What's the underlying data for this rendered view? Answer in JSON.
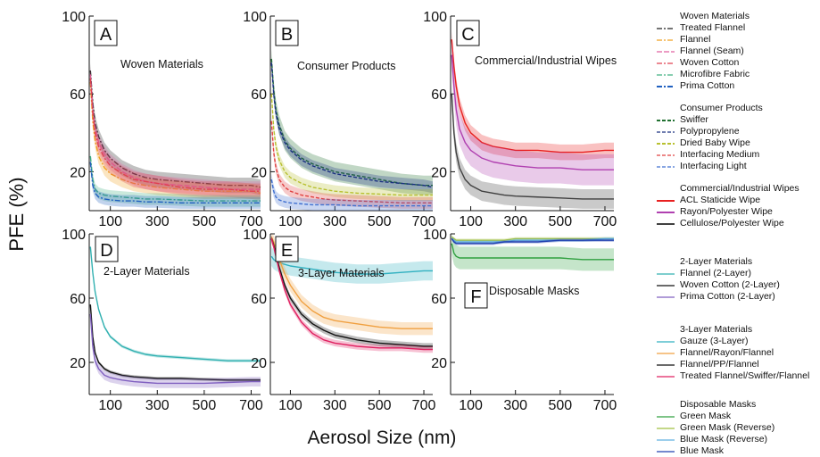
{
  "figure": {
    "ylabel": "PFE (%)",
    "xlabel": "Aerosol Size (nm)"
  },
  "chart_data": [
    {
      "panel": "A",
      "type": "line",
      "annotation": "Woven Materials",
      "xlim": [
        10,
        740
      ],
      "ylim": [
        0,
        100
      ],
      "x_ticks": [
        100,
        300,
        500,
        700
      ],
      "y_ticks": [
        20,
        60,
        100
      ],
      "x": [
        15,
        25,
        35,
        50,
        75,
        100,
        150,
        200,
        250,
        300,
        400,
        500,
        600,
        700,
        740
      ],
      "series": [
        {
          "name": "Treated Flannel",
          "color": "#222222",
          "dash": "6,2,2,2",
          "band": 4,
          "values": [
            72,
            55,
            45,
            38,
            31,
            27,
            22,
            19,
            17,
            16,
            15,
            14,
            13,
            13,
            12
          ]
        },
        {
          "name": "Flannel",
          "color": "#f0a020",
          "dash": "6,2,2,2",
          "band": 4,
          "values": [
            66,
            46,
            36,
            28,
            22,
            19,
            16,
            14,
            13,
            12,
            11,
            10,
            10,
            10,
            9
          ]
        },
        {
          "name": "Flannel (Seam)",
          "color": "#e060a0",
          "dash": "6,2",
          "band": 4,
          "values": [
            70,
            52,
            42,
            35,
            29,
            25,
            20,
            17,
            15,
            14,
            13,
            12,
            11,
            11,
            11
          ]
        },
        {
          "name": "Woven Cotton",
          "color": "#e04050",
          "dash": "6,2,2,2",
          "band": 4,
          "values": [
            68,
            50,
            40,
            33,
            27,
            23,
            19,
            16,
            15,
            14,
            12,
            11,
            11,
            10,
            10
          ]
        },
        {
          "name": "Microfibre Fabric",
          "color": "#40b080",
          "dash": "6,2,2,2",
          "band": 3,
          "values": [
            28,
            16,
            11,
            9,
            8,
            7.5,
            7,
            6.5,
            6,
            6,
            5.5,
            5,
            5,
            5,
            5
          ]
        },
        {
          "name": "Prima Cotton",
          "color": "#2060c0",
          "dash": "6,2,2,2",
          "band": 3,
          "values": [
            25,
            13,
            9,
            7,
            6,
            5.5,
            5,
            5,
            4.5,
            4.5,
            4,
            4,
            4,
            4,
            4
          ]
        }
      ]
    },
    {
      "panel": "B",
      "type": "line",
      "annotation": "Consumer Products",
      "xlim": [
        10,
        740
      ],
      "ylim": [
        0,
        100
      ],
      "x_ticks": [
        100,
        300,
        500,
        700
      ],
      "y_ticks": [
        20,
        60,
        100
      ],
      "x": [
        15,
        25,
        35,
        50,
        75,
        100,
        150,
        200,
        250,
        300,
        400,
        500,
        600,
        700,
        740
      ],
      "series": [
        {
          "name": "Swiffer",
          "color": "#207030",
          "dash": "4,2",
          "band": 5,
          "values": [
            78,
            62,
            52,
            44,
            36,
            32,
            27,
            24,
            22,
            20,
            18,
            16,
            14,
            13,
            13
          ]
        },
        {
          "name": "Polypropylene",
          "color": "#1a3080",
          "dash": "4,2",
          "band": 3,
          "values": [
            76,
            60,
            50,
            42,
            35,
            31,
            26,
            23,
            21,
            19,
            17,
            15,
            14,
            13,
            12
          ]
        },
        {
          "name": "Dried Baby Wipe",
          "color": "#b8c030",
          "dash": "4,2",
          "band": 3,
          "values": [
            60,
            42,
            33,
            26,
            20,
            17,
            14,
            12,
            11,
            10,
            9,
            8.5,
            8,
            8,
            8
          ]
        },
        {
          "name": "Interfacing Medium",
          "color": "#e04040",
          "dash": "4,2",
          "band": 3,
          "values": [
            46,
            30,
            22,
            16,
            12,
            10,
            8,
            7,
            6,
            5.5,
            5,
            4.5,
            4,
            4,
            4
          ]
        },
        {
          "name": "Interfacing Light",
          "color": "#4070d0",
          "dash": "4,2",
          "band": 3,
          "values": [
            16,
            10,
            7,
            5.5,
            4.5,
            4,
            3.5,
            3,
            3,
            3,
            2.5,
            2.5,
            2.5,
            2.5,
            2.5
          ]
        }
      ]
    },
    {
      "panel": "C",
      "type": "line",
      "annotation": "Commercial/Industrial Wipes",
      "xlim": [
        10,
        740
      ],
      "ylim": [
        0,
        100
      ],
      "x_ticks": [
        100,
        300,
        500,
        700
      ],
      "y_ticks": [
        20,
        60,
        100
      ],
      "x": [
        15,
        25,
        35,
        50,
        75,
        100,
        150,
        200,
        250,
        300,
        400,
        500,
        600,
        700,
        740
      ],
      "series": [
        {
          "name": "ACL Staticide Wipe",
          "color": "#e82020",
          "dash": "",
          "band": 4,
          "values": [
            88,
            74,
            64,
            54,
            45,
            40,
            35,
            33,
            32,
            31,
            31,
            30,
            30,
            31,
            31
          ]
        },
        {
          "name": "Rayon/Polyester Wipe",
          "color": "#b040b0",
          "dash": "",
          "band": 8,
          "values": [
            80,
            64,
            52,
            42,
            35,
            31,
            27,
            25,
            24,
            23,
            22,
            22,
            21,
            21,
            21
          ]
        },
        {
          "name": "Cellulose/Polyester Wipe",
          "color": "#404040",
          "dash": "",
          "band": 5,
          "values": [
            60,
            40,
            30,
            22,
            16,
            13,
            10,
            9,
            8,
            7.5,
            7,
            6.5,
            6,
            6,
            6
          ]
        }
      ]
    },
    {
      "panel": "D",
      "type": "line",
      "annotation": "2-Layer Materials",
      "xlim": [
        10,
        740
      ],
      "ylim": [
        0,
        100
      ],
      "x_ticks": [
        100,
        300,
        500,
        700
      ],
      "y_ticks": [
        20,
        60,
        100
      ],
      "x": [
        15,
        25,
        35,
        50,
        75,
        100,
        150,
        200,
        250,
        300,
        400,
        500,
        600,
        700,
        740
      ],
      "series": [
        {
          "name": "Flannel (2-Layer)",
          "color": "#30b0b0",
          "dash": "",
          "band": 1,
          "values": [
            92,
            76,
            64,
            53,
            42,
            36,
            30,
            27,
            25,
            24,
            23,
            22,
            21,
            21,
            21
          ]
        },
        {
          "name": "Woven Cotton (2-Layer)",
          "color": "#111111",
          "dash": "",
          "band": 1,
          "values": [
            56,
            36,
            26,
            20,
            16,
            14,
            12,
            11,
            10.5,
            10,
            10,
            9.5,
            9,
            9,
            9
          ]
        },
        {
          "name": "Prima Cotton (2-Layer)",
          "color": "#8060c0",
          "dash": "",
          "band": 3,
          "values": [
            50,
            30,
            21,
            16,
            12,
            10.5,
            9,
            8,
            7.5,
            7,
            7,
            7,
            7.5,
            8,
            8
          ]
        }
      ]
    },
    {
      "panel": "E",
      "type": "line",
      "annotation": "3-Layer Materials",
      "xlim": [
        10,
        740
      ],
      "ylim": [
        0,
        100
      ],
      "x_ticks": [
        100,
        300,
        500,
        700
      ],
      "y_ticks": [
        20,
        60,
        100
      ],
      "x": [
        15,
        25,
        35,
        50,
        75,
        100,
        150,
        200,
        250,
        300,
        400,
        500,
        600,
        700,
        740
      ],
      "series": [
        {
          "name": "Gauze (3-Layer)",
          "color": "#30b0c0",
          "dash": "",
          "band": 6,
          "values": [
            86,
            84,
            83,
            82,
            81,
            80,
            79,
            78,
            77,
            76,
            75,
            75,
            76,
            77,
            77
          ]
        },
        {
          "name": "Flannel/Rayon/Flannel",
          "color": "#f0a040",
          "dash": "",
          "band": 4,
          "values": [
            98,
            95,
            90,
            84,
            75,
            68,
            58,
            52,
            48,
            46,
            44,
            42,
            41,
            41,
            41
          ]
        },
        {
          "name": "Flannel/PP/Flannel",
          "color": "#111111",
          "dash": "",
          "band": 2,
          "values": [
            97,
            93,
            87,
            79,
            68,
            60,
            50,
            44,
            40,
            37,
            34,
            32,
            31,
            30,
            30
          ]
        },
        {
          "name": "Treated Flannel/Swiffer/Flannel",
          "color": "#e02060",
          "dash": "",
          "band": 2,
          "values": [
            97,
            92,
            86,
            77,
            65,
            56,
            45,
            38,
            34,
            32,
            30,
            29,
            29,
            28,
            28
          ]
        }
      ]
    },
    {
      "panel": "F",
      "type": "line",
      "annotation": "Disposable Masks",
      "xlim": [
        10,
        740
      ],
      "ylim": [
        0,
        100
      ],
      "x_ticks": [
        100,
        300,
        500,
        700
      ],
      "y_ticks": [
        20,
        60,
        100
      ],
      "x": [
        15,
        25,
        35,
        50,
        75,
        100,
        150,
        200,
        250,
        300,
        400,
        500,
        600,
        700,
        740
      ],
      "series": [
        {
          "name": "Green Mask",
          "color": "#30a040",
          "dash": "",
          "band": 7,
          "values": [
            94,
            88,
            86,
            85,
            85,
            85,
            85,
            85,
            85,
            85,
            85,
            85,
            84,
            84,
            84
          ]
        },
        {
          "name": "Green Mask (Reverse)",
          "color": "#a0c040",
          "dash": "",
          "band": 1,
          "values": [
            98,
            97,
            96,
            96,
            96,
            96,
            96,
            96,
            96,
            97,
            97,
            97,
            97,
            97,
            97
          ]
        },
        {
          "name": "Blue Mask (Reverse)",
          "color": "#60b0e0",
          "dash": "",
          "band": 1,
          "values": [
            97,
            96,
            95,
            95,
            95,
            95,
            95,
            95,
            95,
            96,
            96,
            96,
            96,
            97,
            97
          ]
        },
        {
          "name": "Blue Mask",
          "color": "#2040b0",
          "dash": "",
          "band": 1,
          "values": [
            97,
            95,
            94,
            94,
            94,
            94,
            94,
            94,
            95,
            95,
            95,
            96,
            96,
            96,
            96
          ]
        }
      ]
    }
  ],
  "legend": [
    {
      "title": "Woven Materials",
      "items": [
        {
          "name": "Treated Flannel",
          "color": "#222222",
          "dash": "6,2,2,2",
          "width": 1.3
        },
        {
          "name": "Flannel",
          "color": "#f0a020",
          "dash": "6,2,2,2",
          "width": 1.3
        },
        {
          "name": "Flannel (Seam)",
          "color": "#e060a0",
          "dash": "6,2",
          "width": 1.3
        },
        {
          "name": "Woven Cotton",
          "color": "#e04050",
          "dash": "6,2,2,2",
          "width": 1.3
        },
        {
          "name": "Microfibre Fabric",
          "color": "#40b080",
          "dash": "6,2,2,2",
          "width": 1.3
        },
        {
          "name": "Prima Cotton",
          "color": "#2060c0",
          "dash": "6,2,2,2",
          "width": 2
        }
      ]
    },
    {
      "title": "Consumer Products",
      "items": [
        {
          "name": "Swiffer",
          "color": "#207030",
          "dash": "4,2",
          "width": 2
        },
        {
          "name": "Polypropylene",
          "color": "#1a3080",
          "dash": "4,2",
          "width": 1.3
        },
        {
          "name": "Dried Baby Wipe",
          "color": "#b8c030",
          "dash": "4,2",
          "width": 2
        },
        {
          "name": "Interfacing Medium",
          "color": "#e04040",
          "dash": "4,2",
          "width": 1.3
        },
        {
          "name": "Interfacing Light",
          "color": "#4070d0",
          "dash": "4,2",
          "width": 1.3
        }
      ]
    },
    {
      "title": "Commercial/Industrial Wipes",
      "items": [
        {
          "name": "ACL Staticide Wipe",
          "color": "#e82020",
          "dash": "",
          "width": 2
        },
        {
          "name": "Rayon/Polyester Wipe",
          "color": "#b040b0",
          "dash": "",
          "width": 2
        },
        {
          "name": "Cellulose/Polyester Wipe",
          "color": "#404040",
          "dash": "",
          "width": 2
        }
      ]
    },
    {
      "title": "2-Layer Materials",
      "items": [
        {
          "name": "Flannel (2-Layer)",
          "color": "#30b0b0",
          "dash": "",
          "width": 1.2
        },
        {
          "name": "Woven Cotton (2-Layer)",
          "color": "#111111",
          "dash": "",
          "width": 1.2
        },
        {
          "name": "Prima Cotton (2-Layer)",
          "color": "#8060c0",
          "dash": "",
          "width": 1.2
        }
      ]
    },
    {
      "title": "3-Layer Materials",
      "items": [
        {
          "name": "Gauze (3-Layer)",
          "color": "#30b0c0",
          "dash": "",
          "width": 1.2
        },
        {
          "name": "Flannel/Rayon/Flannel",
          "color": "#f0a040",
          "dash": "",
          "width": 1.2
        },
        {
          "name": "Flannel/PP/Flannel",
          "color": "#111111",
          "dash": "",
          "width": 1.2
        },
        {
          "name": "Treated Flannel/Swiffer/Flannel",
          "color": "#e02060",
          "dash": "",
          "width": 1.2
        }
      ]
    },
    {
      "title": "Disposable Masks",
      "items": [
        {
          "name": "Green Mask",
          "color": "#30a040",
          "dash": "",
          "width": 1.2
        },
        {
          "name": "Green Mask (Reverse)",
          "color": "#a0c040",
          "dash": "",
          "width": 1.2
        },
        {
          "name": "Blue Mask (Reverse)",
          "color": "#60b0e0",
          "dash": "",
          "width": 1.2
        },
        {
          "name": "Blue Mask",
          "color": "#2040b0",
          "dash": "",
          "width": 1.2
        }
      ]
    }
  ]
}
